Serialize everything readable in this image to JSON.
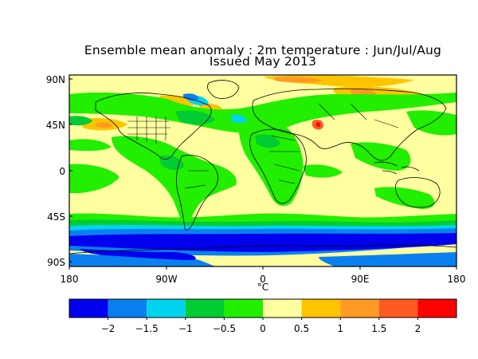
{
  "title": {
    "line1": "Ensemble mean anomaly : 2m temperature : Jun/Jul/Aug",
    "line2": "Issued May 2013"
  },
  "map": {
    "lat_ticks": [
      "90N",
      "45N",
      "0",
      "45S",
      "90S"
    ],
    "lon_ticks": [
      "180",
      "90W",
      "0",
      "90E",
      "180"
    ],
    "unit": "°C"
  },
  "colorbar": {
    "colors": [
      "#0000ee",
      "#0a80f0",
      "#00d4ee",
      "#00cc33",
      "#22ee00",
      "#ffffa0",
      "#ffc400",
      "#ff9a22",
      "#ff5a22",
      "#ff0000"
    ],
    "labels": [
      "-2",
      "-1.5",
      "-1",
      "-0.5",
      "0",
      "0.5",
      "1",
      "1.5",
      "2"
    ]
  },
  "colors": {
    "neutral": "#ffffa0",
    "coast": "#000000"
  }
}
